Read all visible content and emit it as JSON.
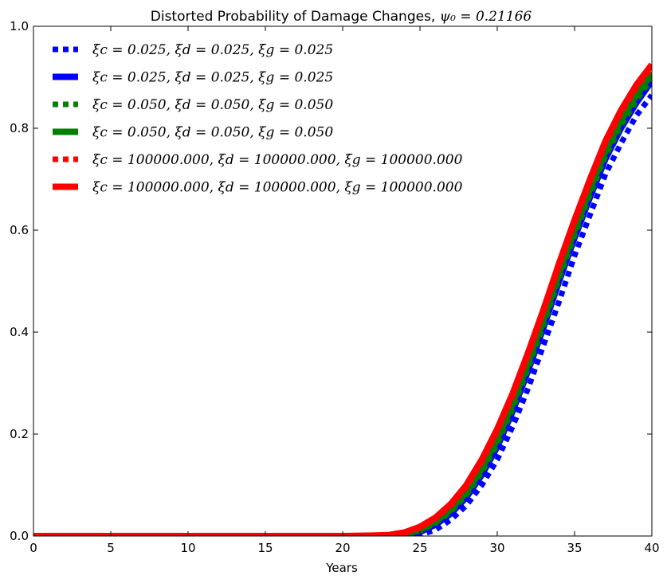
{
  "chart_data": {
    "type": "line",
    "title": "Distorted Probability of Damage Changes, ",
    "title_math": "ψ₀ = 0.21166",
    "xlabel": "Years",
    "ylabel": "",
    "xlim": [
      0,
      40
    ],
    "ylim": [
      0,
      1.0
    ],
    "xticks": [
      0,
      5,
      10,
      15,
      20,
      25,
      30,
      35,
      40
    ],
    "xtick_labels": [
      "0",
      "5",
      "10",
      "15",
      "20",
      "25",
      "30",
      "35",
      "40"
    ],
    "yticks": [
      0,
      0.2,
      0.4,
      0.6,
      0.8,
      1.0
    ],
    "ytick_labels": [
      "0.0",
      "0.2",
      "0.4",
      "0.6",
      "0.8",
      "1.0"
    ],
    "grid": false,
    "legend_position": "top-left",
    "x": [
      0,
      20,
      22,
      23,
      24,
      25,
      26,
      27,
      28,
      29,
      30,
      31,
      32,
      33,
      34,
      35,
      36,
      37,
      38,
      39,
      40
    ],
    "series": [
      {
        "name": "ξc = 0.025, ξd = 0.025, ξg = 0.025",
        "color": "#0000ff",
        "style": "dotted",
        "values": [
          0,
          0,
          0,
          0,
          0,
          0.002,
          0.012,
          0.032,
          0.06,
          0.1,
          0.15,
          0.215,
          0.29,
          0.375,
          0.46,
          0.55,
          0.63,
          0.71,
          0.77,
          0.825,
          0.865
        ]
      },
      {
        "name": "ξc = 0.025, ξd = 0.025, ξg = 0.025",
        "color": "#0000ff",
        "style": "solid",
        "values": [
          0,
          0,
          0,
          0,
          0.002,
          0.008,
          0.022,
          0.044,
          0.076,
          0.12,
          0.175,
          0.245,
          0.325,
          0.41,
          0.5,
          0.585,
          0.665,
          0.74,
          0.8,
          0.85,
          0.893
        ]
      },
      {
        "name": "ξc = 0.050, ξd = 0.050, ξg = 0.050",
        "color": "#008000",
        "style": "dotted",
        "values": [
          0,
          0,
          0,
          0.001,
          0.003,
          0.01,
          0.025,
          0.048,
          0.08,
          0.125,
          0.18,
          0.25,
          0.33,
          0.415,
          0.505,
          0.59,
          0.67,
          0.745,
          0.805,
          0.855,
          0.898
        ]
      },
      {
        "name": "ξc = 0.050, ξd = 0.050, ξg = 0.050",
        "color": "#008000",
        "style": "solid",
        "values": [
          0,
          0,
          0,
          0.001,
          0.004,
          0.012,
          0.028,
          0.052,
          0.086,
          0.132,
          0.19,
          0.26,
          0.34,
          0.425,
          0.515,
          0.6,
          0.68,
          0.755,
          0.815,
          0.865,
          0.908
        ]
      },
      {
        "name": "ξc = 100000.000, ξd = 100000.000, ξg = 100000.000",
        "color": "#ff0000",
        "style": "dotted",
        "values": [
          0,
          0,
          0.001,
          0.002,
          0.006,
          0.016,
          0.034,
          0.06,
          0.096,
          0.145,
          0.205,
          0.275,
          0.355,
          0.44,
          0.53,
          0.615,
          0.695,
          0.77,
          0.83,
          0.88,
          0.92
        ]
      },
      {
        "name": "ξc = 100000.000, ξd = 100000.000, ξg = 100000.000",
        "color": "#ff0000",
        "style": "solid",
        "values": [
          0,
          0,
          0.001,
          0.002,
          0.007,
          0.018,
          0.036,
          0.063,
          0.1,
          0.15,
          0.21,
          0.28,
          0.36,
          0.445,
          0.535,
          0.62,
          0.7,
          0.775,
          0.835,
          0.885,
          0.925
        ]
      }
    ]
  }
}
